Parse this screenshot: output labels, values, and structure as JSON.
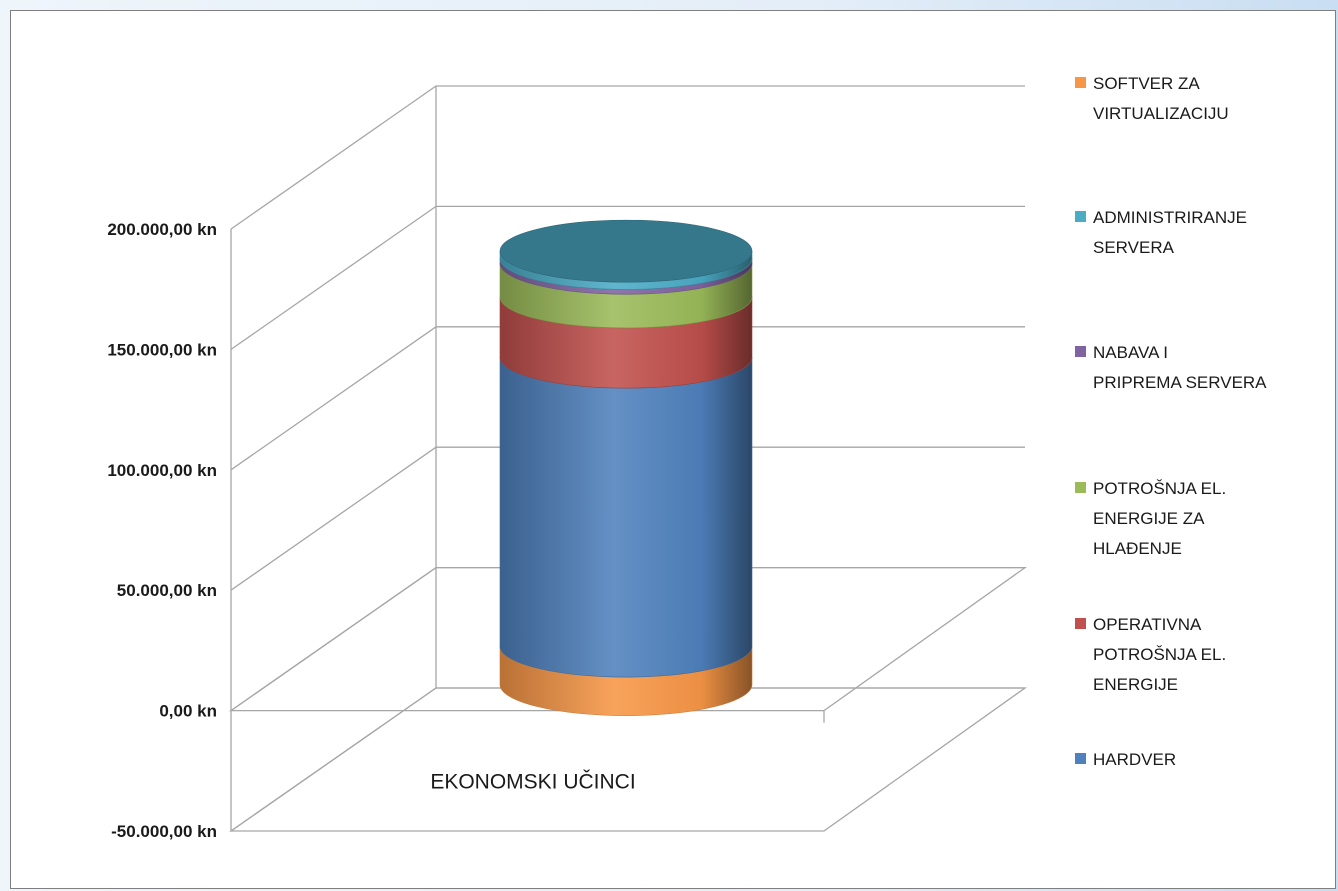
{
  "chart_data": {
    "type": "bar",
    "variant": "3d-stacked-cylinder",
    "categories": [
      "EKONOMSKI UČINCI"
    ],
    "series": [
      {
        "name": "HARDVER",
        "values": [
          120000
        ],
        "color": "#4f81bd"
      },
      {
        "name": "OPERATIVNA POTROŠNJA EL. ENERGIJE",
        "values": [
          25000
        ],
        "color": "#c0504d"
      },
      {
        "name": "POTROŠNJA EL. ENERGIJE ZA HLAĐENJE",
        "values": [
          14000
        ],
        "color": "#9bbb59"
      },
      {
        "name": "NABAVA I PRIPREMA SERVERA",
        "values": [
          2000
        ],
        "color": "#8064a2"
      },
      {
        "name": "ADMINISTRIRANJE SERVERA",
        "values": [
          3000
        ],
        "color": "#4bacc6"
      },
      {
        "name": "SOFTVER ZA VIRTUALIZACIJU",
        "values": [
          16000
        ],
        "color": "#f79646"
      }
    ],
    "stack_order_bottom_to_top": [
      "SOFTVER ZA VIRTUALIZACIJU",
      "HARDVER",
      "OPERATIVNA POTROŠNJA EL. ENERGIJE",
      "POTROŠNJA EL. ENERGIJE ZA HLAĐENJE",
      "NABAVA I PRIPREMA SERVERA",
      "ADMINISTRIRANJE SERVERA"
    ],
    "y_ticks": [
      -50000,
      0,
      50000,
      100000,
      150000,
      200000
    ],
    "y_tick_labels": [
      "-50.000,00 kn",
      "0,00 kn",
      "50.000,00 kn",
      "100.000,00 kn",
      "150.000,00 kn",
      "200.000,00 kn"
    ],
    "ylim": [
      -50000,
      200000
    ],
    "grid": true,
    "legend": {
      "position": "right",
      "entries": [
        {
          "series": "SOFTVER ZA VIRTUALIZACIJU",
          "lines": [
            "SOFTVER ZA",
            "VIRTUALIZACIJU"
          ]
        },
        {
          "series": "ADMINISTRIRANJE SERVERA",
          "lines": [
            "ADMINISTRIRANJE",
            "SERVERA"
          ]
        },
        {
          "series": "NABAVA I PRIPREMA SERVERA",
          "lines": [
            "NABAVA I",
            "PRIPREMA SERVERA"
          ]
        },
        {
          "series": "POTROŠNJA EL. ENERGIJE ZA HLAĐENJE",
          "lines": [
            "POTROŠNJA EL.",
            "ENERGIJE ZA",
            "HLAĐENJE"
          ]
        },
        {
          "series": "OPERATIVNA POTROŠNJA EL. ENERGIJE",
          "lines": [
            "OPERATIVNA",
            "POTROŠNJA EL.",
            "ENERGIJE"
          ]
        },
        {
          "series": "HARDVER",
          "lines": [
            "HARDVER"
          ]
        }
      ]
    }
  }
}
